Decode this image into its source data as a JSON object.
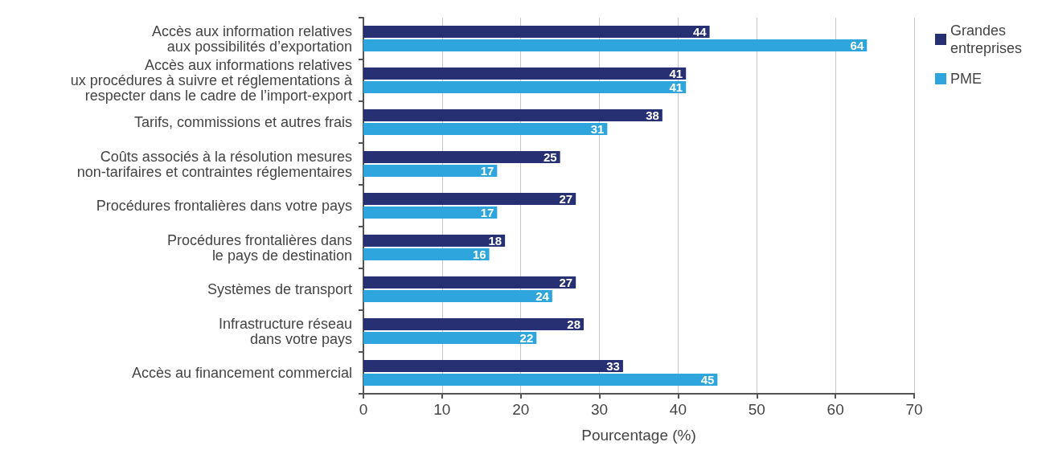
{
  "chart_data": {
    "type": "bar",
    "orientation": "horizontal",
    "categories": [
      "Accès aux information relatives\naux possibilités d’exportation",
      "Accès aux informations relatives\nux procédures à suivre et réglementations à\nrespecter dans le cadre de l’import-export",
      "Tarifs, commissions et autres frais",
      "Coûts associés à la résolution mesures\nnon-tarifaires et contraintes réglementaires",
      "Procédures frontalières dans votre pays",
      "Procédures frontalières dans\nle pays de destination",
      "Systèmes de transport",
      "Infrastructure réseau\ndans votre pays",
      "Accès au financement commercial"
    ],
    "series": [
      {
        "name": "Grandes entreprises",
        "color": "#283074",
        "values": [
          44,
          41,
          38,
          25,
          27,
          18,
          27,
          28,
          33
        ]
      },
      {
        "name": "PME",
        "color": "#2ea6dd",
        "values": [
          64,
          41,
          31,
          17,
          17,
          16,
          24,
          22,
          45
        ]
      }
    ],
    "xlabel": "Pourcentage (%)",
    "xlim": [
      0,
      70
    ],
    "xticks": [
      0,
      10,
      20,
      30,
      40,
      50,
      60,
      70
    ],
    "grid": "x",
    "legend": "top right",
    "data_labels": true
  }
}
